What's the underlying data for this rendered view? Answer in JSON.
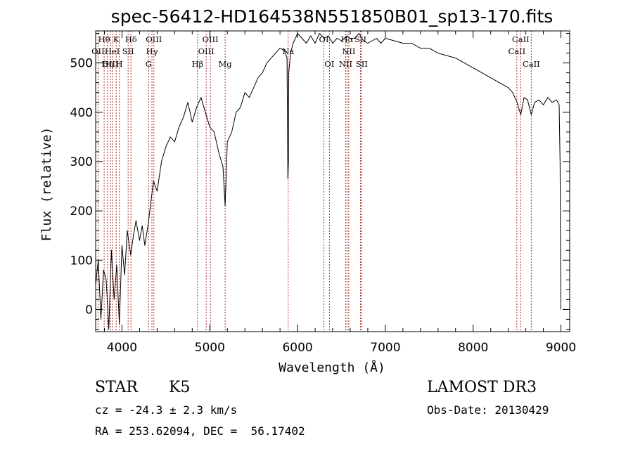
{
  "chart_data": {
    "type": "line",
    "title": "spec-56412-HD164538N551850B01_sp13-170.fits",
    "xlabel": "Wavelength (Å)",
    "ylabel": "Flux (relative)",
    "xlim": [
      3700,
      9100
    ],
    "ylim": [
      -45,
      565
    ],
    "xticks": [
      4000,
      5000,
      6000,
      7000,
      8000,
      9000
    ],
    "yticks": [
      0,
      100,
      200,
      300,
      400,
      500
    ],
    "series": [
      {
        "name": "spectrum",
        "x": [
          3700,
          3730,
          3760,
          3790,
          3820,
          3850,
          3880,
          3910,
          3940,
          3970,
          4000,
          4030,
          4060,
          4100,
          4130,
          4160,
          4200,
          4230,
          4260,
          4300,
          4330,
          4360,
          4400,
          4450,
          4500,
          4550,
          4600,
          4650,
          4700,
          4750,
          4800,
          4850,
          4900,
          4950,
          5000,
          5050,
          5100,
          5150,
          5175,
          5200,
          5250,
          5300,
          5350,
          5400,
          5450,
          5500,
          5550,
          5600,
          5650,
          5700,
          5750,
          5800,
          5850,
          5880,
          5890,
          5896,
          5900,
          5920,
          5950,
          6000,
          6050,
          6100,
          6150,
          6200,
          6250,
          6300,
          6350,
          6400,
          6450,
          6500,
          6563,
          6600,
          6650,
          6700,
          6750,
          6800,
          6850,
          6900,
          6950,
          7000,
          7100,
          7200,
          7300,
          7400,
          7500,
          7600,
          7700,
          7800,
          7900,
          8000,
          8100,
          8200,
          8300,
          8400,
          8450,
          8500,
          8542,
          8580,
          8620,
          8662,
          8700,
          8750,
          8800,
          8850,
          8900,
          8950,
          8980,
          8990,
          9000
        ],
        "y": [
          50,
          100,
          -20,
          80,
          60,
          -40,
          120,
          20,
          90,
          -30,
          130,
          70,
          160,
          110,
          150,
          180,
          140,
          170,
          130,
          175,
          220,
          260,
          240,
          300,
          330,
          350,
          340,
          370,
          390,
          420,
          380,
          410,
          430,
          400,
          370,
          360,
          320,
          290,
          210,
          340,
          360,
          400,
          410,
          440,
          430,
          450,
          470,
          480,
          500,
          510,
          520,
          530,
          525,
          510,
          265,
          300,
          480,
          520,
          540,
          560,
          550,
          540,
          555,
          540,
          560,
          550,
          555,
          540,
          550,
          545,
          555,
          550,
          550,
          560,
          545,
          540,
          545,
          550,
          540,
          550,
          545,
          540,
          540,
          530,
          530,
          520,
          515,
          510,
          500,
          490,
          480,
          470,
          460,
          450,
          440,
          420,
          395,
          430,
          425,
          395,
          420,
          425,
          415,
          430,
          420,
          425,
          415,
          300,
          0
        ]
      }
    ],
    "spectral_lines": [
      {
        "label": "OII",
        "x": 3727,
        "row": 2
      },
      {
        "label": "Hθ",
        "x": 3797,
        "row": 1
      },
      {
        "label": "OIII",
        "x": 3869,
        "row": 3
      },
      {
        "label": "Hη",
        "x": 3835,
        "row": 3
      },
      {
        "label": "K",
        "x": 3934,
        "row": 1
      },
      {
        "label": "HeI",
        "x": 3889,
        "row": 2
      },
      {
        "label": "H",
        "x": 3969,
        "row": 3
      },
      {
        "label": "SII",
        "x": 4070,
        "row": 2
      },
      {
        "label": "Hδ",
        "x": 4102,
        "row": 1
      },
      {
        "label": "G",
        "x": 4304,
        "row": 3
      },
      {
        "label": "Hγ",
        "x": 4341,
        "row": 2
      },
      {
        "label": "OIII",
        "x": 4363,
        "row": 1
      },
      {
        "label": "Hβ",
        "x": 4861,
        "row": 3
      },
      {
        "label": "OIII",
        "x": 4959,
        "row": 2
      },
      {
        "label": "OIII",
        "x": 5007,
        "row": 1
      },
      {
        "label": "Mg",
        "x": 5175,
        "row": 3
      },
      {
        "label": "Na",
        "x": 5893,
        "row": 2
      },
      {
        "label": "OI",
        "x": 6300,
        "row": 1
      },
      {
        "label": "OI",
        "x": 6363,
        "row": 3
      },
      {
        "label": "NII",
        "x": 6548,
        "row": 3
      },
      {
        "label": "Hα",
        "x": 6563,
        "row": 1
      },
      {
        "label": "NII",
        "x": 6583,
        "row": 2
      },
      {
        "label": "SII",
        "x": 6717,
        "row": 1
      },
      {
        "label": "SII",
        "x": 6731,
        "row": 3
      },
      {
        "label": "CaII",
        "x": 8498,
        "row": 2
      },
      {
        "label": "CaII",
        "x": 8542,
        "row": 1
      },
      {
        "label": "CaII",
        "x": 8662,
        "row": 3
      }
    ]
  },
  "info": {
    "class": "STAR",
    "subclass": "K5",
    "survey": "LAMOST DR3",
    "cz": "cz = -24.3 ± 2.3 km/s",
    "obs_date": "Obs-Date: 20130429",
    "coords": "RA = 253.62094, DEC =  56.17402"
  },
  "colors": {
    "line_marker": "#b03030",
    "spectrum": "#000000",
    "axes": "#000000"
  }
}
